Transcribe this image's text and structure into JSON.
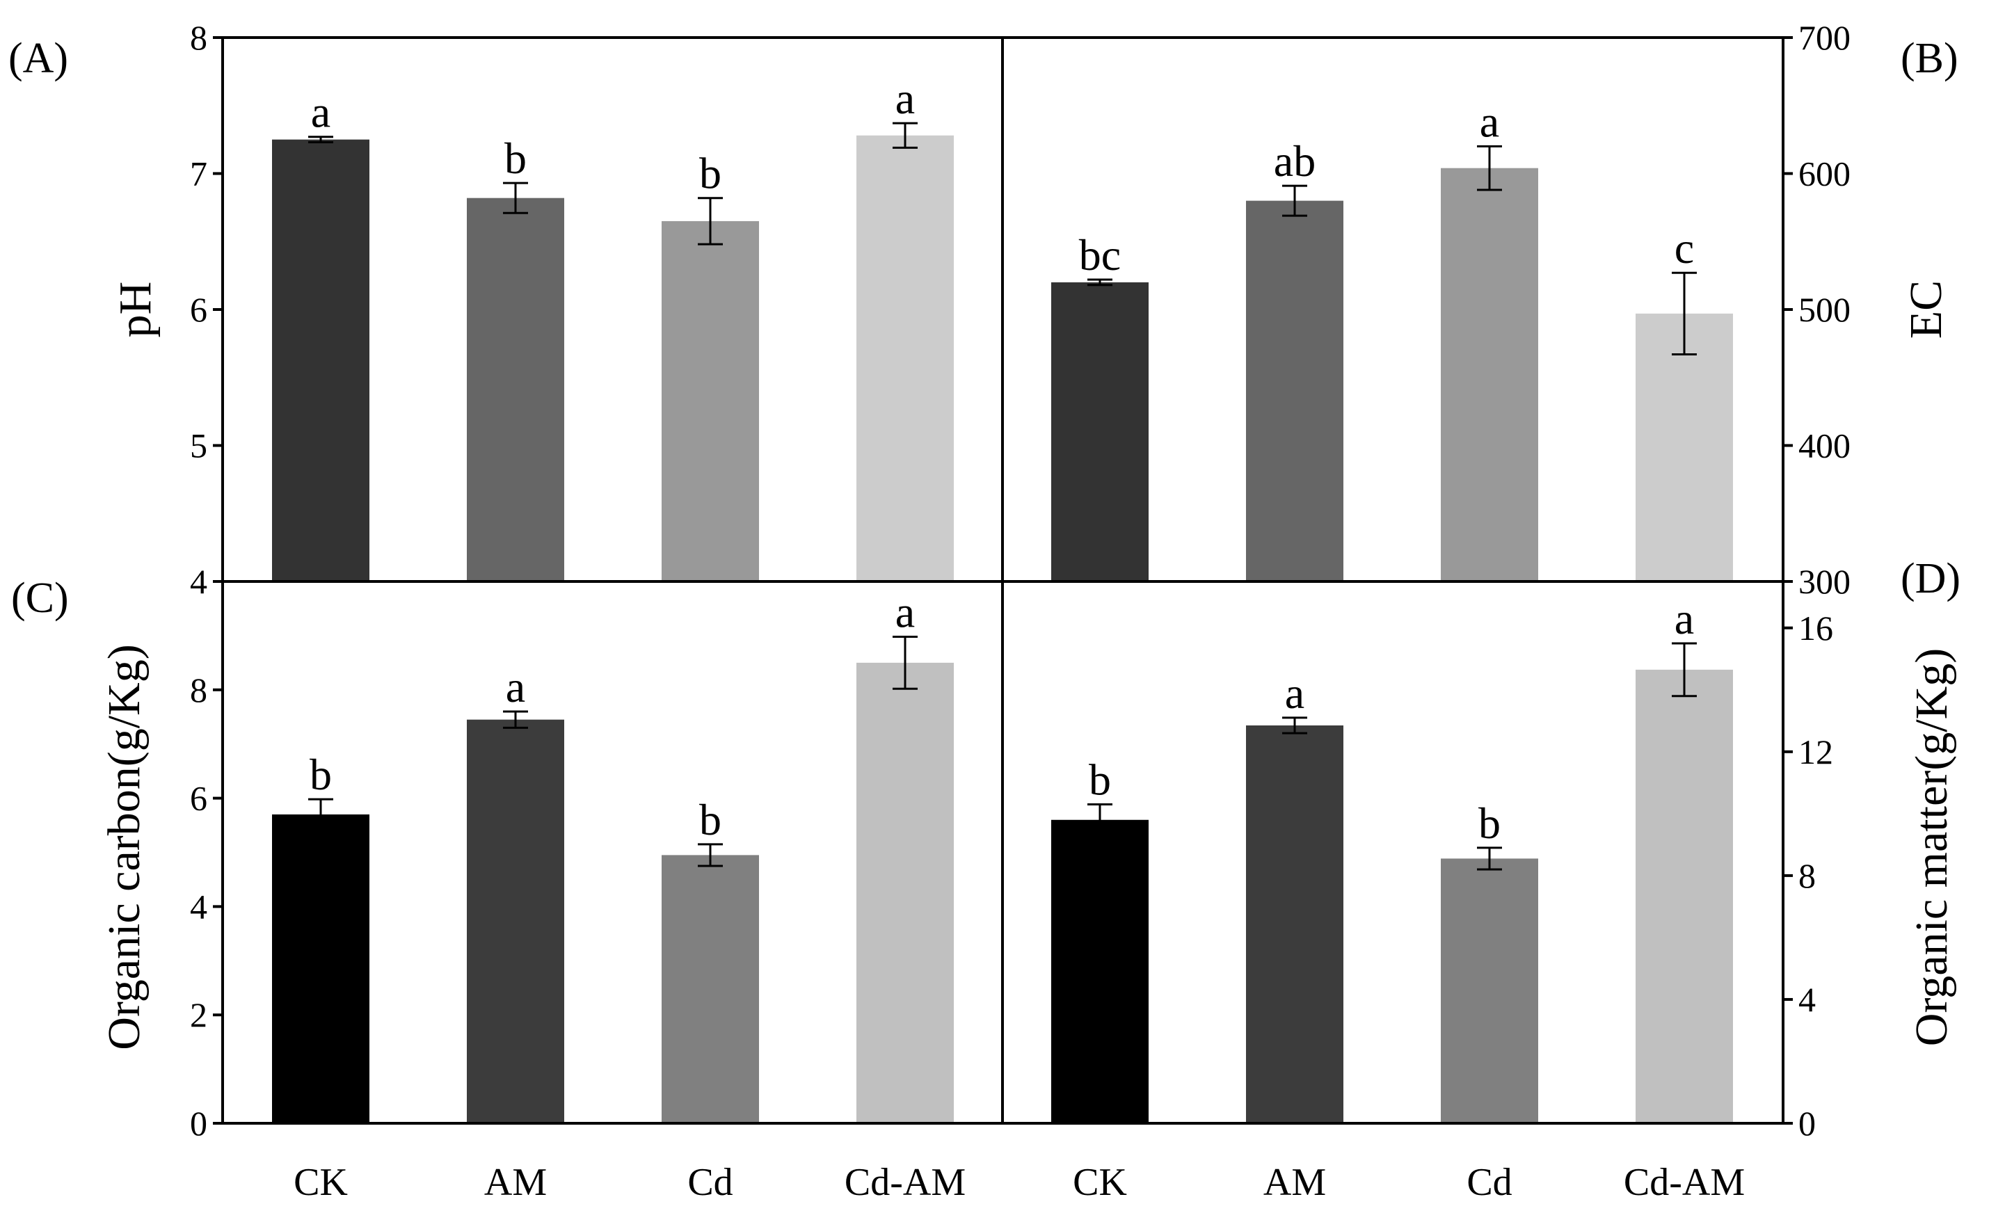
{
  "figure": {
    "categories": [
      "CK",
      "AM",
      "Cd",
      "Cd-AM"
    ]
  },
  "chart_data": [
    {
      "type": "bar",
      "panel": "(A)",
      "ylabel": "pH",
      "categories": [
        "CK",
        "AM",
        "Cd",
        "Cd-AM"
      ],
      "values": [
        7.25,
        6.82,
        6.65,
        7.28
      ],
      "errors": [
        0.02,
        0.11,
        0.17,
        0.09
      ],
      "significance": [
        "a",
        "b",
        "b",
        "a"
      ],
      "colors": [
        "#333333",
        "#666666",
        "#999999",
        "#cccccc"
      ],
      "ylim": [
        4,
        8
      ],
      "yticks": [
        4,
        5,
        6,
        7,
        8
      ],
      "ytick_labels": [
        "4",
        "5",
        "6",
        "7",
        "8"
      ],
      "axis_side": "left"
    },
    {
      "type": "bar",
      "panel": "(B)",
      "ylabel": "EC",
      "categories": [
        "CK",
        "AM",
        "Cd",
        "Cd-AM"
      ],
      "values": [
        520,
        580,
        604,
        497
      ],
      "errors": [
        2,
        11,
        16,
        30
      ],
      "significance": [
        "bc",
        "ab",
        "a",
        "c"
      ],
      "colors": [
        "#333333",
        "#666666",
        "#999999",
        "#cccccc"
      ],
      "ylim": [
        300,
        700
      ],
      "yticks": [
        300,
        400,
        500,
        600,
        700
      ],
      "ytick_labels": [
        "300",
        "400",
        "500",
        "600",
        "700"
      ],
      "axis_side": "right"
    },
    {
      "type": "bar",
      "panel": "(C)",
      "ylabel": "Organic carbon(g/Kg)",
      "categories": [
        "CK",
        "AM",
        "Cd",
        "Cd-AM"
      ],
      "values": [
        5.7,
        7.45,
        4.95,
        8.5
      ],
      "errors": [
        0.28,
        0.15,
        0.2,
        0.48
      ],
      "significance": [
        "b",
        "a",
        "b",
        "a"
      ],
      "colors": [
        "#000000",
        "#3c3c3c",
        "#808080",
        "#c0c0c0"
      ],
      "ylim": [
        0,
        10
      ],
      "yticks": [
        0,
        2,
        4,
        6,
        8
      ],
      "ytick_labels": [
        "0",
        "2",
        "4",
        "6",
        "8"
      ],
      "axis_side": "left"
    },
    {
      "type": "bar",
      "panel": "(D)",
      "ylabel": "Organic matter(g/Kg)",
      "categories": [
        "CK",
        "AM",
        "Cd",
        "Cd-AM"
      ],
      "values": [
        9.8,
        12.85,
        8.55,
        14.65
      ],
      "errors": [
        0.5,
        0.25,
        0.35,
        0.85
      ],
      "significance": [
        "b",
        "a",
        "b",
        "a"
      ],
      "colors": [
        "#000000",
        "#3c3c3c",
        "#808080",
        "#c0c0c0"
      ],
      "ylim": [
        0,
        17.5
      ],
      "yticks": [
        0,
        4,
        8,
        12,
        16
      ],
      "ytick_labels": [
        "0",
        "4",
        "8",
        "12",
        "16"
      ],
      "axis_side": "right"
    }
  ]
}
